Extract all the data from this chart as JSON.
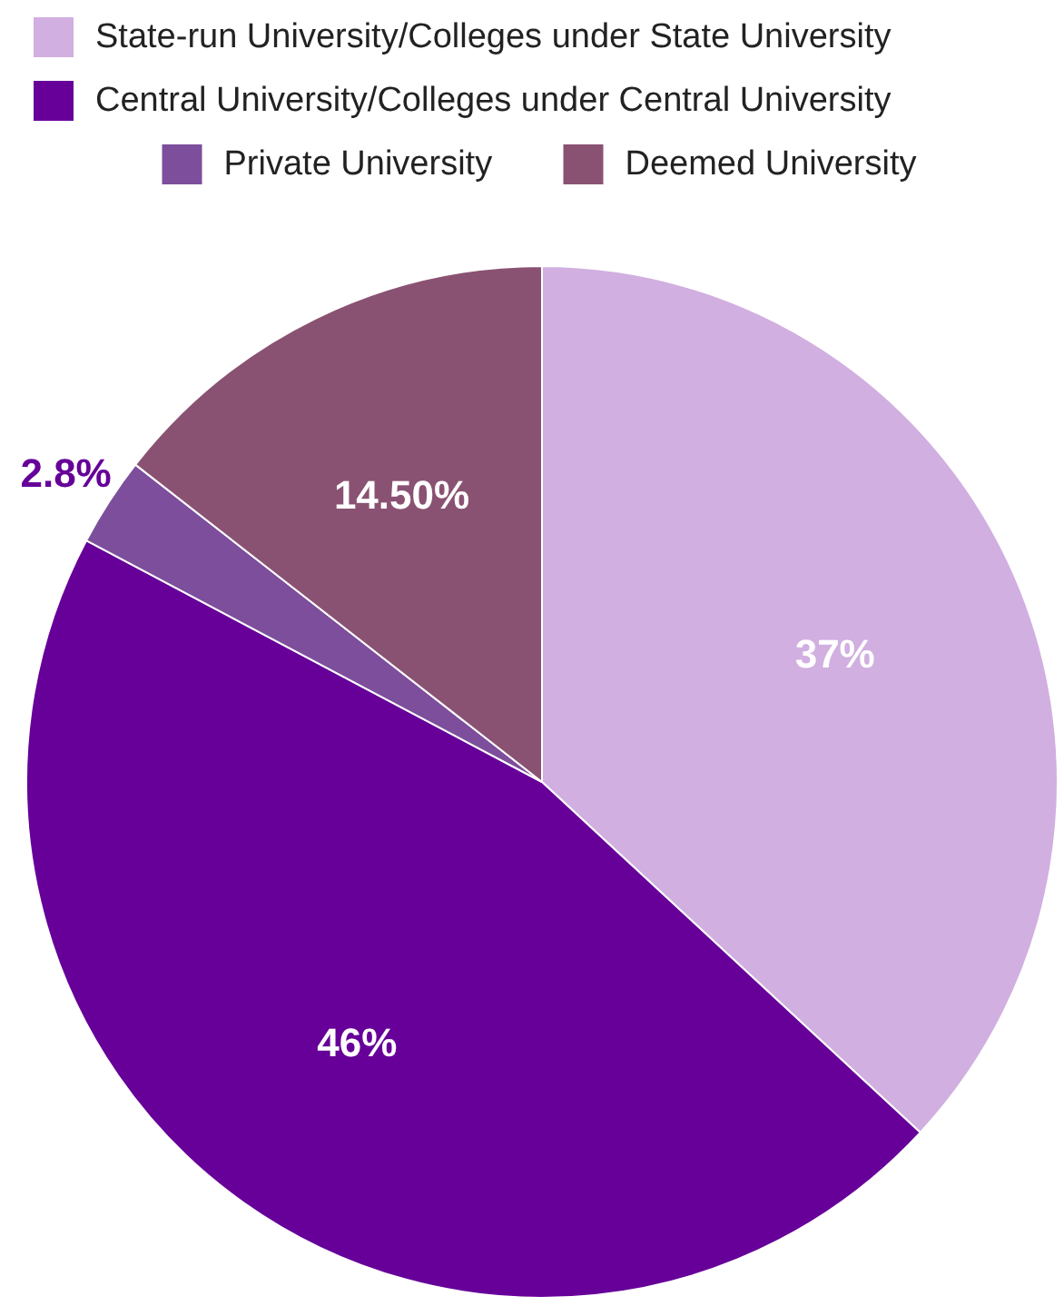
{
  "chart_data": {
    "type": "pie",
    "categories": [
      "State-run University/Colleges under State University",
      "Central University/Colleges under Central University",
      "Private University",
      "Deemed University"
    ],
    "values": [
      37,
      46,
      2.8,
      14.5
    ],
    "value_labels": [
      "37%",
      "46%",
      "2.8%",
      "14.50%"
    ],
    "colors": [
      "#d1afe0",
      "#660099",
      "#7d4e9c",
      "#8a5272"
    ],
    "legend": "top"
  }
}
